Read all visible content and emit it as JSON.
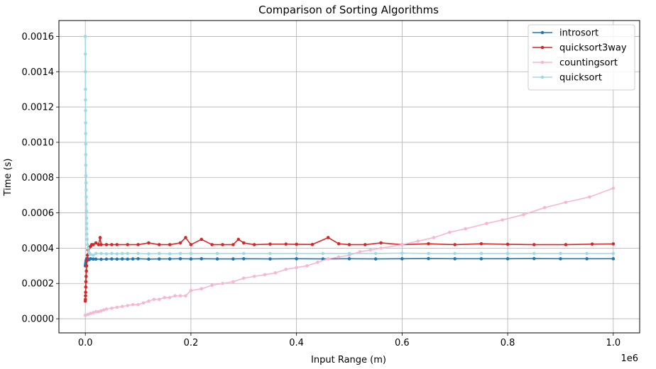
{
  "chart_data": {
    "type": "line",
    "title": "Comparison of Sorting Algorithms",
    "xlabel": "Input Range (m)",
    "ylabel": "Time (s)",
    "x_offset_label": "1e6",
    "xlim": [
      -50000,
      1050000
    ],
    "ylim": [
      -8e-05,
      0.00169
    ],
    "xticks": [
      0,
      200000,
      400000,
      600000,
      800000,
      1000000
    ],
    "xtick_labels": [
      "0.0",
      "0.2",
      "0.4",
      "0.6",
      "0.8",
      "1.0"
    ],
    "yticks": [
      0,
      0.0002,
      0.0004,
      0.0006,
      0.0008,
      0.001,
      0.0012,
      0.0014,
      0.0016
    ],
    "ytick_labels": [
      "0.0000",
      "0.0002",
      "0.0004",
      "0.0006",
      "0.0008",
      "0.0010",
      "0.0012",
      "0.0014",
      "0.0016"
    ],
    "grid": true,
    "legend_position": "top-right",
    "series": [
      {
        "name": "introsort",
        "color": "#1f77b4",
        "x": [
          0,
          500,
          1000,
          1500,
          2000,
          2500,
          3000,
          4000,
          5000,
          7000,
          10000,
          15000,
          20000,
          30000,
          40000,
          50000,
          60000,
          70000,
          80000,
          90000,
          100000,
          120000,
          140000,
          160000,
          180000,
          200000,
          220000,
          250000,
          280000,
          300000,
          350000,
          400000,
          450000,
          500000,
          550000,
          600000,
          650000,
          700000,
          750000,
          800000,
          850000,
          900000,
          950000,
          1000000
        ],
        "y": [
          0.0003,
          0.00031,
          0.00032,
          0.00033,
          0.00033,
          0.00034,
          0.00034,
          0.000335,
          0.00034,
          0.000335,
          0.00034,
          0.000338,
          0.000338,
          0.000337,
          0.000338,
          0.000339,
          0.000338,
          0.000339,
          0.000338,
          0.000339,
          0.00034,
          0.000338,
          0.000339,
          0.000339,
          0.00034,
          0.000339,
          0.00034,
          0.000339,
          0.000339,
          0.00034,
          0.000339,
          0.00034,
          0.000339,
          0.00034,
          0.000339,
          0.00034,
          0.000341,
          0.00034,
          0.00034,
          0.00034,
          0.000341,
          0.00034,
          0.00034,
          0.00034
        ]
      },
      {
        "name": "quicksort3way",
        "color": "#d62728",
        "x": [
          0,
          200,
          400,
          600,
          800,
          1000,
          1500,
          2000,
          2500,
          3000,
          4000,
          5000,
          6000,
          8000,
          10000,
          12000,
          15000,
          20000,
          25000,
          28000,
          30000,
          40000,
          50000,
          60000,
          80000,
          100000,
          120000,
          140000,
          160000,
          180000,
          190000,
          200000,
          220000,
          240000,
          260000,
          280000,
          290000,
          300000,
          320000,
          350000,
          380000,
          400000,
          430000,
          460000,
          480000,
          500000,
          530000,
          560000,
          600000,
          650000,
          700000,
          750000,
          800000,
          850000,
          910000,
          960000,
          1000000
        ],
        "y": [
          0.0001,
          0.00011,
          0.00013,
          0.00015,
          0.00018,
          0.00021,
          0.00024,
          0.00027,
          0.0003,
          0.00033,
          0.00036,
          0.00039,
          0.0004,
          0.000405,
          0.00041,
          0.00042,
          0.00042,
          0.00043,
          0.00042,
          0.00046,
          0.00042,
          0.00042,
          0.00042,
          0.00042,
          0.00042,
          0.00042,
          0.00043,
          0.00042,
          0.00042,
          0.00043,
          0.00046,
          0.00042,
          0.00045,
          0.00042,
          0.00042,
          0.00042,
          0.00045,
          0.00043,
          0.00042,
          0.000423,
          0.000423,
          0.000422,
          0.000421,
          0.00046,
          0.000425,
          0.00042,
          0.00042,
          0.00043,
          0.00042,
          0.000425,
          0.00042,
          0.000425,
          0.000422,
          0.00042,
          0.00042,
          0.000423,
          0.000424
        ]
      },
      {
        "name": "countingsort",
        "color": "#f7b6d2",
        "x": [
          0,
          5000,
          10000,
          15000,
          20000,
          25000,
          30000,
          35000,
          40000,
          50000,
          60000,
          70000,
          80000,
          90000,
          100000,
          110000,
          120000,
          130000,
          140000,
          150000,
          160000,
          170000,
          180000,
          190000,
          200000,
          220000,
          240000,
          260000,
          280000,
          300000,
          320000,
          340000,
          360000,
          380000,
          400000,
          420000,
          440000,
          460000,
          480000,
          500000,
          520000,
          540000,
          560000,
          600000,
          630000,
          660000,
          690000,
          720000,
          760000,
          790000,
          830000,
          870000,
          910000,
          955000,
          1000000
        ],
        "y": [
          2e-05,
          2.5e-05,
          3e-05,
          3.5e-05,
          4e-05,
          4e-05,
          4.5e-05,
          5e-05,
          5.5e-05,
          6e-05,
          6.5e-05,
          7e-05,
          7.5e-05,
          8e-05,
          8e-05,
          9e-05,
          0.0001,
          0.00011,
          0.00011,
          0.00012,
          0.00012,
          0.00013,
          0.00013,
          0.00013,
          0.00016,
          0.00017,
          0.00019,
          0.0002,
          0.00021,
          0.00023,
          0.00024,
          0.00025,
          0.00026,
          0.00028,
          0.00029,
          0.0003,
          0.00032,
          0.00034,
          0.00035,
          0.00036,
          0.00038,
          0.00039,
          0.0004,
          0.00042,
          0.00044,
          0.00046,
          0.00049,
          0.00051,
          0.00054,
          0.00056,
          0.00059,
          0.00063,
          0.00066,
          0.00069,
          0.00074
        ]
      },
      {
        "name": "quicksort",
        "color": "#9edae5",
        "x": [
          0,
          100,
          200,
          300,
          400,
          500,
          600,
          700,
          800,
          900,
          1000,
          1200,
          1400,
          1600,
          1800,
          2000,
          2200,
          2400,
          2600,
          2800,
          3000,
          3500,
          4000,
          5000,
          6000,
          8000,
          10000,
          15000,
          20000,
          30000,
          40000,
          50000,
          60000,
          70000,
          80000,
          100000,
          120000,
          140000,
          160000,
          180000,
          200000,
          250000,
          300000,
          350000,
          400000,
          450000,
          500000,
          550000,
          600000,
          650000,
          700000,
          750000,
          800000,
          850000,
          900000,
          950000,
          1000000
        ],
        "y": [
          0.0016,
          0.0015,
          0.0014,
          0.0013,
          0.00124,
          0.00118,
          0.00111,
          0.00105,
          0.00099,
          0.00093,
          0.00087,
          0.00081,
          0.00077,
          0.00073,
          0.00069,
          0.00065,
          0.00061,
          0.00057,
          0.00054,
          0.00051,
          0.00048,
          0.00045,
          0.00042,
          0.0004,
          0.00038,
          0.00037,
          0.000365,
          0.00036,
          0.00037,
          0.00037,
          0.000368,
          0.00037,
          0.000368,
          0.00037,
          0.00037,
          0.00037,
          0.000368,
          0.00037,
          0.000368,
          0.00037,
          0.00037,
          0.00037,
          0.00037,
          0.00037,
          0.00037,
          0.00037,
          0.00037,
          0.00037,
          0.000372,
          0.00037,
          0.00037,
          0.00037,
          0.00037,
          0.00037,
          0.00037,
          0.00037,
          0.00037
        ]
      }
    ]
  }
}
